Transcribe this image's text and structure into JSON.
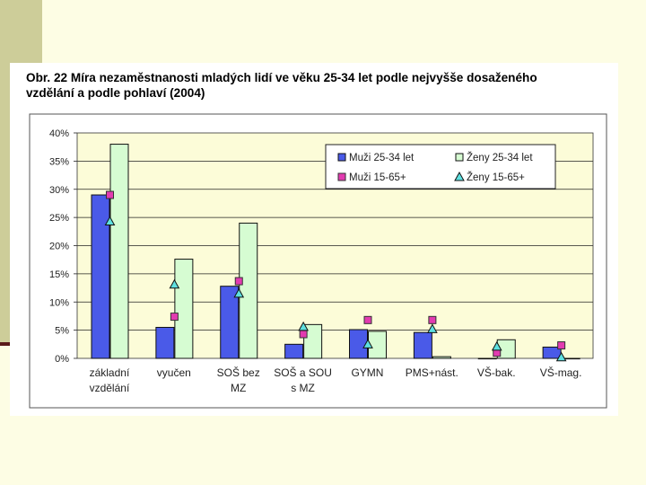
{
  "figure": {
    "title_line1": "Obr. 22 Míra nezaměstnanosti mladých lidí ve věku 25-34 let podle nejvyšše dosaženého",
    "title_line2": "vzdělání a podle pohlaví (2004)"
  },
  "chart_data": {
    "type": "bar",
    "title": "Obr. 22 Míra nezaměstnanosti mladých lidí ve věku 25-34 let podle nejvyšše dosaženého vzdělání a podle pohlaví (2004)",
    "categories": [
      [
        "základní",
        "vzdělání"
      ],
      [
        "vyučen"
      ],
      [
        "SOŠ bez",
        "MZ"
      ],
      [
        "SOŠ a SOU",
        "s MZ"
      ],
      [
        "GYMN"
      ],
      [
        "PMS+nást."
      ],
      [
        "VŠ-bak."
      ],
      [
        "VŠ-mag."
      ]
    ],
    "ylim": [
      0,
      40
    ],
    "yticks": [
      0,
      5,
      10,
      15,
      20,
      25,
      30,
      35,
      40
    ],
    "ytick_labels": [
      "0%",
      "5%",
      "10%",
      "15%",
      "20%",
      "25%",
      "30%",
      "35%",
      "40%"
    ],
    "grid": true,
    "legend_position": "top-right",
    "bar_series": [
      {
        "name": "Muži 25-34 let",
        "color": "#4a5ae8",
        "values": [
          29,
          5.5,
          12.8,
          2.5,
          5.1,
          4.6,
          0,
          2
        ]
      },
      {
        "name": "Ženy 25-34 let",
        "color": "#d6fcd2",
        "values": [
          38,
          17.6,
          24,
          6,
          4.8,
          0.3,
          3.3,
          0
        ]
      }
    ],
    "marker_series": [
      {
        "name": "Muži 15-65+",
        "marker": "square",
        "color": "#e23bb0",
        "values": [
          29,
          7.4,
          13.7,
          4.3,
          6.8,
          6.8,
          1,
          2.3
        ]
      },
      {
        "name": "Ženy 15-65+",
        "marker": "triangle",
        "color": "#5ee0e0",
        "values": [
          24.3,
          13.1,
          11.5,
          5.6,
          2.5,
          5.2,
          2.1,
          0.2
        ]
      }
    ]
  }
}
